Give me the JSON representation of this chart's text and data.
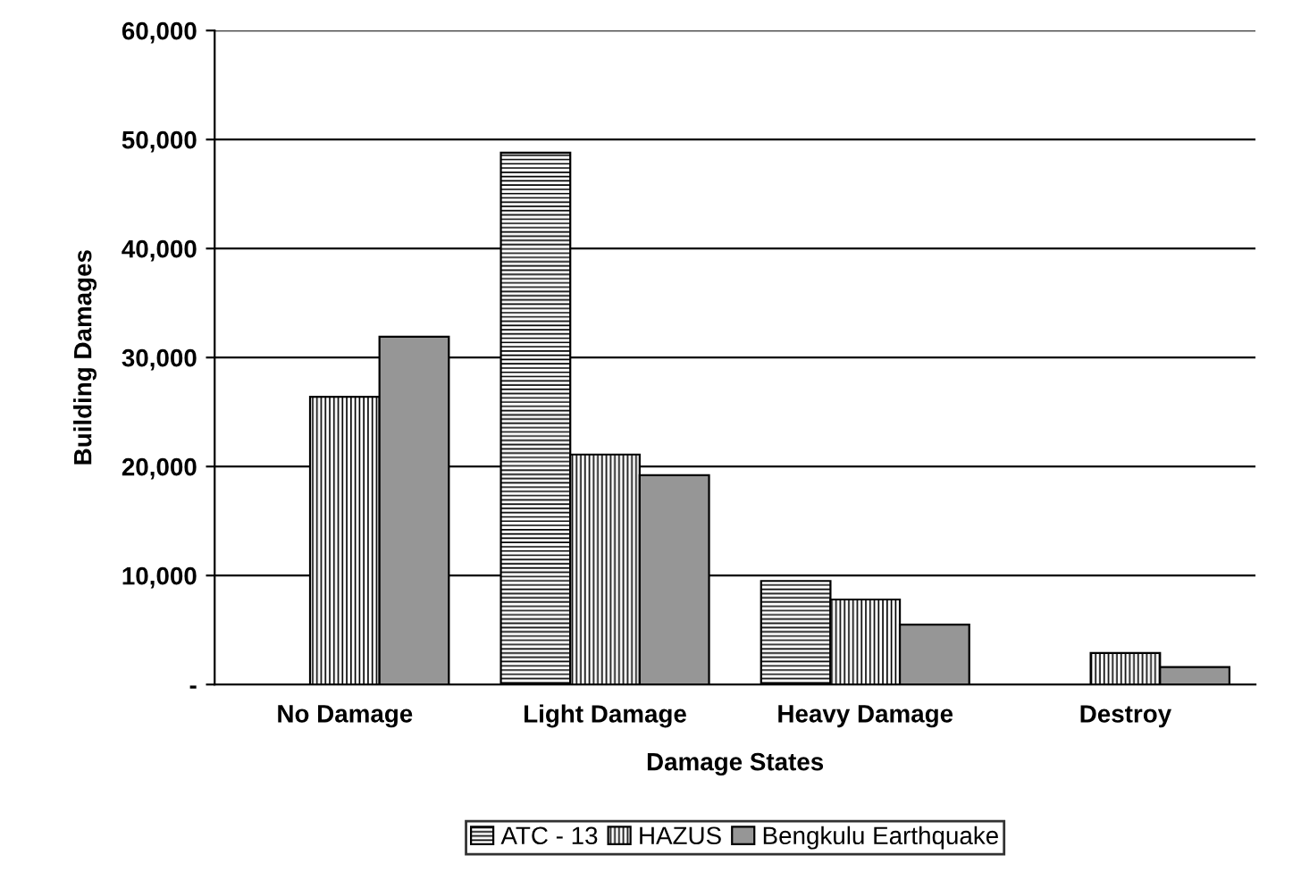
{
  "chart_data": {
    "type": "bar",
    "xlabel": "Damage States",
    "ylabel": "Building Damages",
    "categories": [
      "No Damage",
      "Light Damage",
      "Heavy Damage",
      "Destroy"
    ],
    "series": [
      {
        "name": "ATC - 13",
        "color": "#000000",
        "values": [
          null,
          48800,
          9500,
          null
        ]
      },
      {
        "name": "HAZUS",
        "color": "#000000",
        "values": [
          26400,
          21100,
          7800,
          2900
        ]
      },
      {
        "name": "Bengkulu Earthquake",
        "color": "#969696",
        "values": [
          31900,
          19200,
          5500,
          1600
        ]
      }
    ],
    "ylim": [
      0,
      60000
    ],
    "yticks": [
      {
        "value": 0,
        "label": "-"
      },
      {
        "value": 10000,
        "label": "10,000"
      },
      {
        "value": 20000,
        "label": "20,000"
      },
      {
        "value": 30000,
        "label": "30,000"
      },
      {
        "value": 40000,
        "label": "40,000"
      },
      {
        "value": 50000,
        "label": "50,000"
      },
      {
        "value": 60000,
        "label": "60,000"
      }
    ],
    "grid": "y",
    "legend": "bottom"
  }
}
